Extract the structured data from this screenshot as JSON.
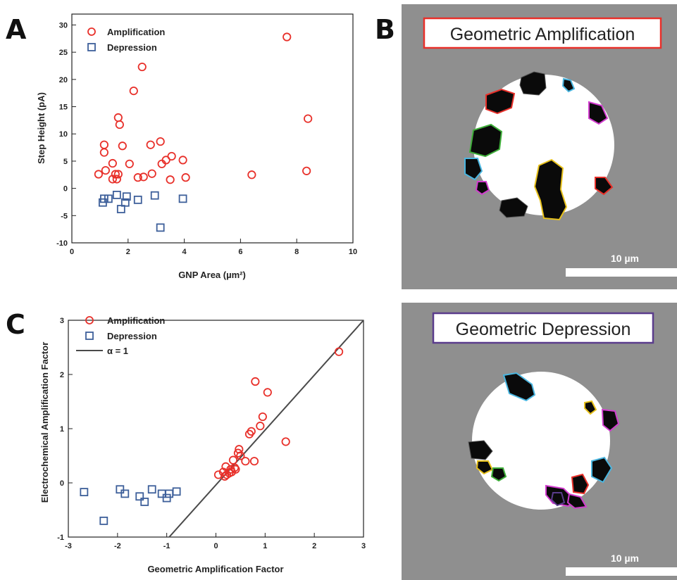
{
  "panels": {
    "a": "A",
    "b": "B",
    "c": "C"
  },
  "colors": {
    "amplification": "#e8302a",
    "depression": "#3d5f9a",
    "line": "#4a4a4a",
    "micro_bg": "#8f8f8f",
    "micro_amp_border": "#e8302a",
    "micro_dep_border": "#5a3c8c"
  },
  "chart_data": [
    {
      "type": "scatter",
      "xlabel": "GNP Area (µm²)",
      "ylabel": "Step Height (pA)",
      "xlim": [
        0,
        10
      ],
      "ylim": [
        -10,
        32
      ],
      "xticks": [
        "0",
        "2",
        "4",
        "6",
        "8",
        "10"
      ],
      "yticks": [
        "-10",
        "-5",
        "0",
        "5",
        "10",
        "15",
        "20",
        "25",
        "30"
      ],
      "legend_position": "top-left",
      "series": [
        {
          "name": "Amplification",
          "marker": "circle",
          "points": [
            [
              0.95,
              2.6
            ],
            [
              1.15,
              8.0
            ],
            [
              1.15,
              6.6
            ],
            [
              1.2,
              3.3
            ],
            [
              1.45,
              4.6
            ],
            [
              1.45,
              1.7
            ],
            [
              1.55,
              2.6
            ],
            [
              1.6,
              1.7
            ],
            [
              1.65,
              2.6
            ],
            [
              1.65,
              13.0
            ],
            [
              1.7,
              11.7
            ],
            [
              1.8,
              7.8
            ],
            [
              2.05,
              4.5
            ],
            [
              2.2,
              17.9
            ],
            [
              2.35,
              2.0
            ],
            [
              2.5,
              22.3
            ],
            [
              2.55,
              2.1
            ],
            [
              2.8,
              8.0
            ],
            [
              2.85,
              2.7
            ],
            [
              3.15,
              8.6
            ],
            [
              3.2,
              4.5
            ],
            [
              3.35,
              5.2
            ],
            [
              3.5,
              1.6
            ],
            [
              3.55,
              5.9
            ],
            [
              3.95,
              5.2
            ],
            [
              4.05,
              2.0
            ],
            [
              6.4,
              2.5
            ],
            [
              7.65,
              27.8
            ],
            [
              8.35,
              3.2
            ],
            [
              8.4,
              12.8
            ]
          ]
        },
        {
          "name": "Depression",
          "marker": "square",
          "points": [
            [
              1.1,
              -2.6
            ],
            [
              1.15,
              -1.9
            ],
            [
              1.3,
              -1.9
            ],
            [
              1.6,
              -1.2
            ],
            [
              1.75,
              -3.8
            ],
            [
              1.9,
              -2.6
            ],
            [
              1.95,
              -1.5
            ],
            [
              2.35,
              -2.1
            ],
            [
              2.95,
              -1.3
            ],
            [
              3.15,
              -7.2
            ],
            [
              3.95,
              -1.9
            ]
          ]
        }
      ]
    },
    {
      "type": "scatter",
      "xlabel": "Geometric Amplification Factor",
      "ylabel": "Electrochemical Amplification Factor",
      "xlim": [
        -3,
        3
      ],
      "ylim": [
        -1,
        3
      ],
      "xticks": [
        "-3",
        "-2",
        "-1",
        "0",
        "1",
        "2",
        "3"
      ],
      "yticks": [
        "-1",
        "0",
        "1",
        "2",
        "3"
      ],
      "legend_position": "top-left",
      "series": [
        {
          "name": "Amplification",
          "marker": "circle",
          "points": [
            [
              0.05,
              0.15
            ],
            [
              0.15,
              0.2
            ],
            [
              0.18,
              0.12
            ],
            [
              0.2,
              0.3
            ],
            [
              0.22,
              0.15
            ],
            [
              0.27,
              0.18
            ],
            [
              0.3,
              0.25
            ],
            [
              0.32,
              0.2
            ],
            [
              0.35,
              0.42
            ],
            [
              0.38,
              0.28
            ],
            [
              0.4,
              0.25
            ],
            [
              0.45,
              0.55
            ],
            [
              0.47,
              0.62
            ],
            [
              0.5,
              0.5
            ],
            [
              0.6,
              0.4
            ],
            [
              0.68,
              0.9
            ],
            [
              0.72,
              0.95
            ],
            [
              0.78,
              0.4
            ],
            [
              0.8,
              1.87
            ],
            [
              0.9,
              1.05
            ],
            [
              0.95,
              1.22
            ],
            [
              1.05,
              1.67
            ],
            [
              1.42,
              0.76
            ],
            [
              2.5,
              2.42
            ]
          ]
        },
        {
          "name": "Depression",
          "marker": "square",
          "points": [
            [
              -2.68,
              -0.17
            ],
            [
              -2.28,
              -0.7
            ],
            [
              -1.95,
              -0.12
            ],
            [
              -1.85,
              -0.2
            ],
            [
              -1.55,
              -0.25
            ],
            [
              -1.45,
              -0.35
            ],
            [
              -1.3,
              -0.12
            ],
            [
              -1.1,
              -0.2
            ],
            [
              -1.0,
              -0.28
            ],
            [
              -0.95,
              -0.2
            ],
            [
              -0.8,
              -0.16
            ]
          ]
        },
        {
          "name": "α = 1",
          "marker": "line",
          "points": [
            [
              -0.95,
              -1.0
            ],
            [
              3.0,
              3.0
            ]
          ]
        }
      ]
    }
  ],
  "micrographs": {
    "top": {
      "title": "Geometric Amplification",
      "scale_label": "10 µm"
    },
    "bottom": {
      "title": "Geometric Depression",
      "scale_label": "10 µm"
    }
  }
}
